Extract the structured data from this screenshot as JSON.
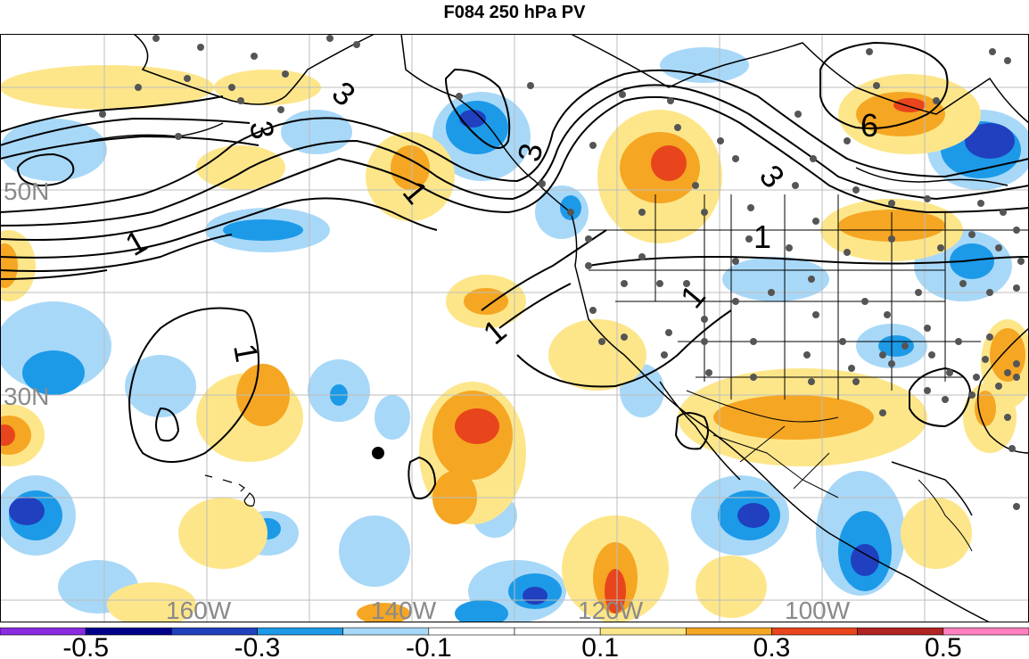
{
  "title": "F084 250 hPa PV",
  "grid_labels": {
    "lat_50": "50N",
    "lat_30": "30N",
    "lon_160": "160W",
    "lon_140": "140W",
    "lon_120": "120W",
    "lon_100": "100W"
  },
  "contour_labels": [
    "1",
    "1",
    "1",
    "1",
    "1",
    "1",
    "3",
    "3",
    "3",
    "3",
    "6"
  ],
  "colorbar": {
    "colors": [
      "#8a2be2",
      "#00008b",
      "#2040c0",
      "#1c9ae8",
      "#a8d8f8",
      "#ffffff",
      "#ffffff",
      "#fde68a",
      "#f5a623",
      "#e8451c",
      "#b22222",
      "#ff80c0"
    ],
    "tick_labels": [
      "-0.5",
      "-0.3",
      "-0.1",
      "0.1",
      "0.3",
      "0.5"
    ]
  },
  "colors": {
    "neg_light": "#a8d8f8",
    "neg_mid": "#1c9ae8",
    "neg_deep": "#2040c0",
    "neg_darkest": "#00008b",
    "pos_light": "#fde68a",
    "pos_mid": "#f5a623",
    "pos_strong": "#e8451c",
    "pos_darkest": "#b22222"
  }
}
